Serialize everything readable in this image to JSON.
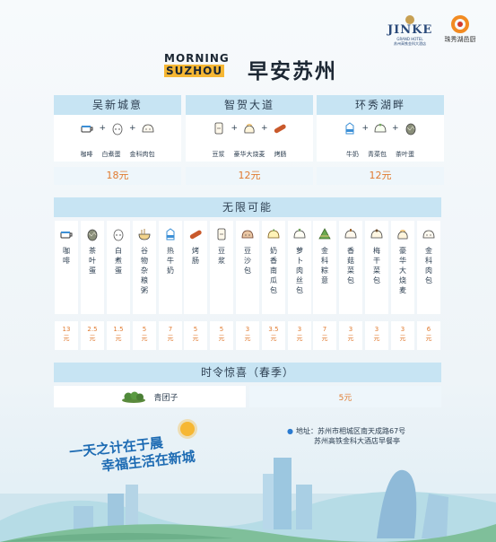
{
  "header": {
    "logo_line1": "MORNING",
    "logo_line2": "SUZHOU",
    "title_cn": "早安苏州",
    "brand1_big": "JINKE",
    "brand1_small": "GRAND HOTEL",
    "brand1_tiny": "苏州高铁金科大酒店",
    "brand2_name": "珠秀湖邑厨"
  },
  "sets": [
    {
      "name": "吴新城意",
      "items": [
        "咖啡",
        "白煮蛋",
        "金科肉包"
      ],
      "icons": [
        "coffee-cup-icon",
        "boiled-egg-icon",
        "steamed-bun-icon"
      ],
      "price": "18元"
    },
    {
      "name": "智贺大道",
      "items": [
        "豆浆",
        "豪华大烧麦",
        "烤肠"
      ],
      "icons": [
        "soymilk-icon",
        "shaomai-icon",
        "sausage-icon"
      ],
      "price": "12元"
    },
    {
      "name": "环秀湖畔",
      "items": [
        "牛奶",
        "青菜包",
        "茶叶蛋"
      ],
      "icons": [
        "milk-carton-icon",
        "vegetable-bun-icon",
        "tea-egg-icon"
      ],
      "price": "12元"
    }
  ],
  "unlimited": {
    "title": "无限可能",
    "items": [
      {
        "name": "咖啡",
        "price": "13元",
        "icon": "coffee-cup-icon"
      },
      {
        "name": "茶叶蛋",
        "price": "2.5元",
        "icon": "tea-egg-icon"
      },
      {
        "name": "白煮蛋",
        "price": "1.5元",
        "icon": "boiled-egg-icon"
      },
      {
        "name": "谷物杂粮粥",
        "price": "5元",
        "icon": "porridge-icon"
      },
      {
        "name": "热牛奶",
        "price": "7元",
        "icon": "milk-carton-icon"
      },
      {
        "name": "烤肠",
        "price": "5元",
        "icon": "sausage-icon"
      },
      {
        "name": "豆浆",
        "price": "5元",
        "icon": "soymilk-icon"
      },
      {
        "name": "豆沙包",
        "price": "3元",
        "icon": "red-bean-bun-icon"
      },
      {
        "name": "奶香南瓜包",
        "price": "3.5元",
        "icon": "pumpkin-bun-icon"
      },
      {
        "name": "萝卜肉丝包",
        "price": "3元",
        "icon": "radish-bun-icon"
      },
      {
        "name": "金科粽意",
        "price": "7元",
        "icon": "zongzi-icon"
      },
      {
        "name": "香菇菜包",
        "price": "3元",
        "icon": "mushroom-bun-icon"
      },
      {
        "name": "梅干菜包",
        "price": "3元",
        "icon": "meigan-bun-icon"
      },
      {
        "name": "豪华大烧麦",
        "price": "3元",
        "icon": "shaomai-icon"
      },
      {
        "name": "金科肉包",
        "price": "6元",
        "icon": "steamed-bun-icon"
      }
    ]
  },
  "seasonal": {
    "title": "时令惊喜（春季）",
    "item": "青团子",
    "icon": "qingtuan-icon",
    "price": "5元"
  },
  "footer": {
    "address_label": "地址：",
    "address_line1": "苏州市相城区南天成路67号",
    "address_line2": "苏州高铁金科大酒店早餐亭",
    "slogan_line1": "一天之计在于晨",
    "slogan_line2": "幸福生活在新城"
  },
  "colors": {
    "header_bar": "#c7e4f3",
    "price_text": "#e07b30",
    "slogan": "#1d6bb3",
    "accent_yellow": "#f6b733"
  }
}
